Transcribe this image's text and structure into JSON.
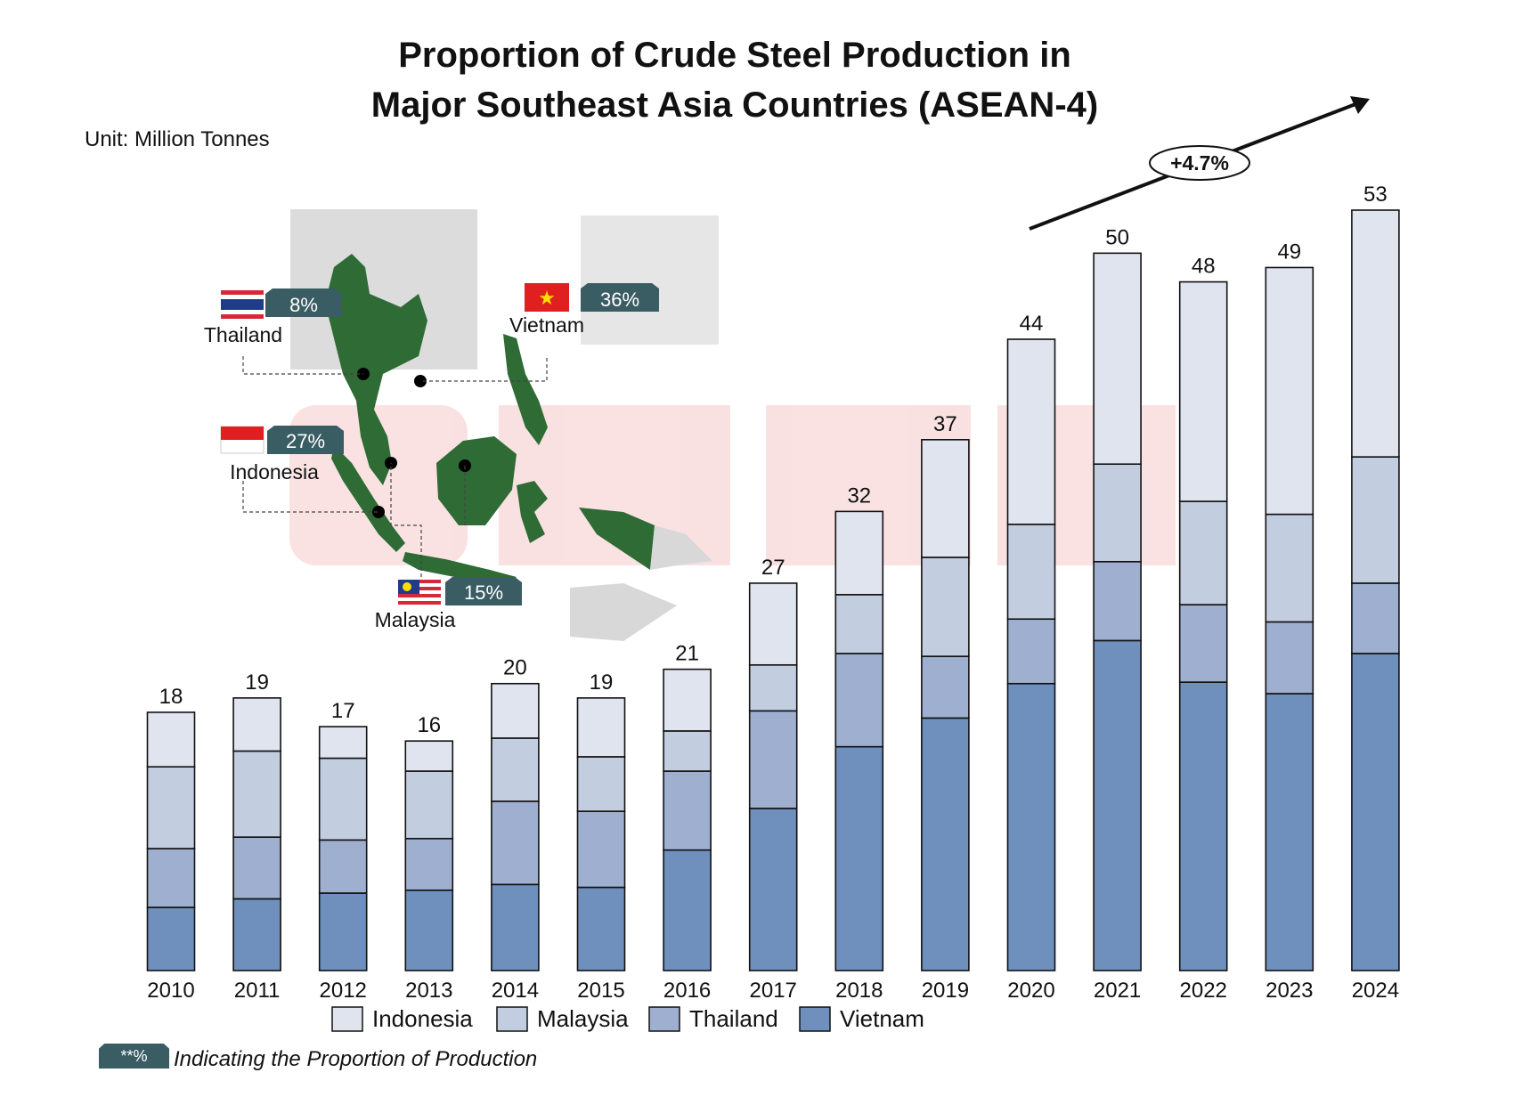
{
  "title_line1": "Proportion of Crude Steel Production in",
  "title_line2": "Major Southeast Asia Countries (ASEAN-4)",
  "unit": "Unit: Million Tonnes",
  "growth_label": "+4.7%",
  "footnote_badge": "**%",
  "footnote_text": "Indicating the Proportion of Production",
  "map_callouts": [
    {
      "country": "Thailand",
      "share": "8%"
    },
    {
      "country": "Vietnam",
      "share": "36%"
    },
    {
      "country": "Indonesia",
      "share": "27%"
    },
    {
      "country": "Malaysia",
      "share": "15%"
    }
  ],
  "colors": {
    "Indonesia": "#dfe4ee",
    "Malaysia": "#c3cde0",
    "Thailand": "#9eafcf",
    "Vietnam": "#6f8fbd",
    "badge": "#3a5c63",
    "map_land": "#2e6b35"
  },
  "chart_data": {
    "type": "bar",
    "stacked": true,
    "categories": [
      "2010",
      "2011",
      "2012",
      "2013",
      "2014",
      "2015",
      "2016",
      "2017",
      "2018",
      "2019",
      "2020",
      "2021",
      "2022",
      "2023",
      "2024"
    ],
    "totals": [
      18,
      19,
      17,
      16,
      20,
      19,
      21,
      27,
      32,
      37,
      44,
      50,
      48,
      49,
      53
    ],
    "series": [
      {
        "name": "Vietnam",
        "values": [
          4.4,
          5.0,
          5.4,
          5.6,
          6.0,
          5.8,
          8.4,
          11.3,
          15.6,
          17.6,
          20.0,
          23.0,
          20.1,
          19.3,
          22.1
        ]
      },
      {
        "name": "Thailand",
        "values": [
          4.1,
          4.3,
          3.7,
          3.6,
          5.8,
          5.3,
          5.5,
          6.8,
          6.5,
          4.3,
          4.5,
          5.5,
          5.4,
          5.0,
          4.9
        ]
      },
      {
        "name": "Malaysia",
        "values": [
          5.7,
          6.0,
          5.7,
          4.7,
          4.4,
          3.8,
          2.8,
          3.2,
          4.1,
          6.9,
          6.6,
          6.8,
          7.2,
          7.5,
          8.8
        ]
      },
      {
        "name": "Indonesia",
        "values": [
          3.8,
          3.7,
          2.2,
          2.1,
          3.8,
          4.1,
          4.3,
          5.7,
          5.8,
          8.2,
          12.9,
          14.7,
          15.3,
          17.2,
          17.2
        ]
      }
    ],
    "legend": [
      "Indonesia",
      "Malaysia",
      "Thailand",
      "Vietnam"
    ],
    "legend_position": "bottom",
    "ylim": [
      0,
      53
    ],
    "grid": false
  }
}
